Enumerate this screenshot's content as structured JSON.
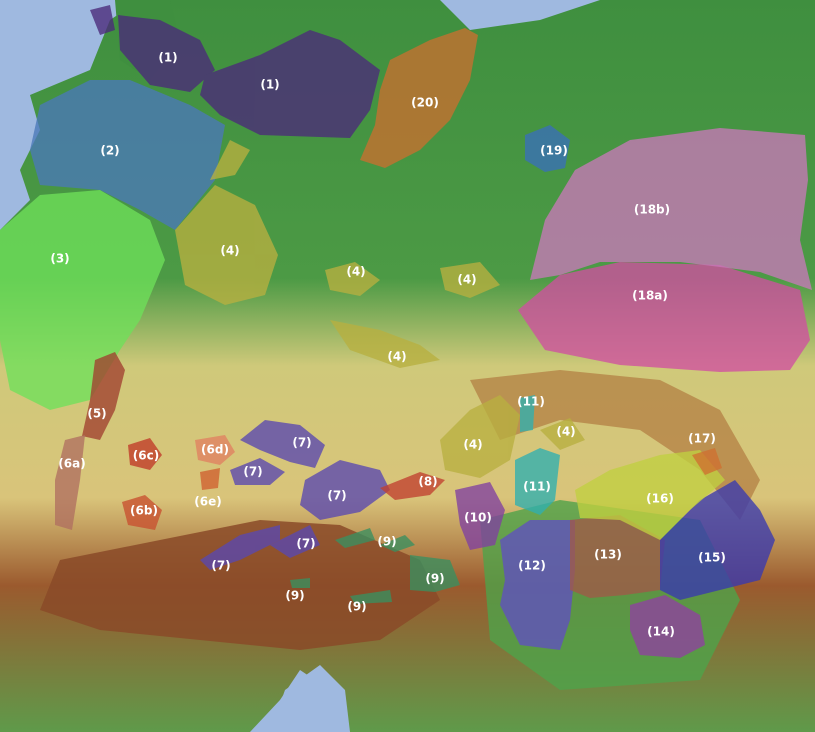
{
  "map": {
    "colors": {
      "sea": "#9fb9e0",
      "lowland": "#3f8f3f",
      "upland": "#d9d48a",
      "mountain": "#9b5a2e"
    },
    "regions": [
      {
        "label": "(1)",
        "color": "#4b2a7a"
      },
      {
        "label": "(2)",
        "color": "#4a78b8"
      },
      {
        "label": "(3)",
        "color": "#6ee05a"
      },
      {
        "label": "(4)",
        "color": "#b8b040"
      },
      {
        "label": "(5)",
        "color": "#a04030"
      },
      {
        "label": "(6a)",
        "color": "#b07060"
      },
      {
        "label": "(6b)",
        "color": "#c85030"
      },
      {
        "label": "(6c)",
        "color": "#c03a28"
      },
      {
        "label": "(6d)",
        "color": "#e08060"
      },
      {
        "label": "(6e)",
        "color": "#d06030"
      },
      {
        "label": "(7)",
        "color": "#5a48b0"
      },
      {
        "label": "(8)",
        "color": "#c04030"
      },
      {
        "label": "(9)",
        "color": "#3a9060"
      },
      {
        "label": "(10)",
        "color": "#8040a0"
      },
      {
        "label": "(11)",
        "color": "#30b0b0"
      },
      {
        "label": "(12)",
        "color": "#6050c0"
      },
      {
        "label": "(13)",
        "color": "#a05a48"
      },
      {
        "label": "(14)",
        "color": "#9040a0"
      },
      {
        "label": "(15)",
        "color": "#3838b0"
      },
      {
        "label": "(16)",
        "color": "#c0d040"
      },
      {
        "label": "(17)",
        "color": "#d07030"
      },
      {
        "label": "(18a)",
        "color": "#d050a0"
      },
      {
        "label": "(18b)",
        "color": "#c878b8"
      },
      {
        "label": "(19)",
        "color": "#3a70b8"
      },
      {
        "label": "(20)",
        "color": "#c87030"
      }
    ]
  }
}
